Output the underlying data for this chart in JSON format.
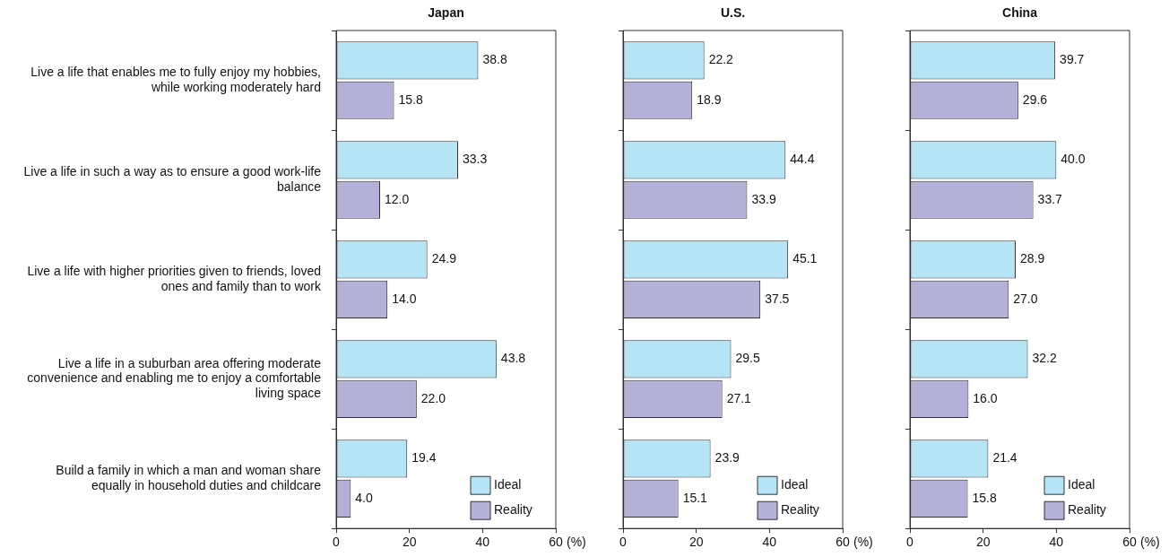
{
  "chart_data": [
    {
      "type": "bar",
      "orientation": "horizontal",
      "title": "Japan",
      "xlabel": "(%)",
      "categories": [
        "Live a life that enables me to fully enjoy my hobbies, while working moderately hard",
        "Live a life in such a way as to ensure a good work-life balance",
        "Live a life with higher priorities given to friends, loved ones and family than to work",
        "Live a life in a suburban area offering moderate convenience and enabling me to enjoy a comfortable living space",
        "Build a family in which a man and woman share equally in household duties and childcare"
      ],
      "series": [
        {
          "name": "Ideal",
          "color": "#b6e4f7",
          "values": [
            38.8,
            33.3,
            24.9,
            43.8,
            19.4
          ],
          "value_labels": [
            "38.8",
            "33.3",
            "24.9",
            "43.8",
            "19.4"
          ]
        },
        {
          "name": "Reality",
          "color": "#b4b1d9",
          "values": [
            15.8,
            12.0,
            14.0,
            22.0,
            4.0
          ],
          "value_labels": [
            "15.8",
            "12.0",
            "14.0",
            "22.0",
            "4.0"
          ]
        }
      ],
      "xlim": [
        0,
        60
      ],
      "xticks": [
        0,
        20,
        40,
        60
      ],
      "legend": "bottom right"
    },
    {
      "type": "bar",
      "orientation": "horizontal",
      "title": "U.S.",
      "xlabel": "(%)",
      "categories": [
        null,
        null,
        null,
        null,
        null
      ],
      "series": [
        {
          "name": "Ideal",
          "color": "#b6e4f7",
          "values": [
            22.2,
            44.4,
            45.1,
            29.5,
            23.9
          ],
          "value_labels": [
            "22.2",
            "44.4",
            "45.1",
            "29.5",
            "23.9"
          ]
        },
        {
          "name": "Reality",
          "color": "#b4b1d9",
          "values": [
            18.9,
            33.9,
            37.5,
            27.1,
            15.1
          ],
          "value_labels": [
            "18.9",
            "33.9",
            "37.5",
            "27.1",
            "15.1"
          ]
        }
      ],
      "xlim": [
        0,
        60
      ],
      "xticks": [
        0,
        20,
        40,
        60
      ],
      "legend": "bottom right",
      "tick_labels": "x"
    },
    {
      "type": "bar",
      "orientation": "horizontal",
      "title": "China",
      "xlabel": "(%)",
      "categories": [
        null,
        null,
        null,
        null,
        null
      ],
      "series": [
        {
          "name": "Ideal",
          "color": "#b6e4f7",
          "values": [
            39.7,
            40.0,
            28.9,
            32.2,
            21.4
          ],
          "value_labels": [
            "39.7",
            "40.0",
            "28.9",
            "32.2",
            "21.4"
          ]
        },
        {
          "name": "Reality",
          "color": "#b4b1d9",
          "values": [
            29.6,
            33.7,
            27.0,
            16.0,
            15.8
          ],
          "value_labels": [
            "29.6",
            "33.7",
            "27.0",
            "16.0",
            "15.8"
          ]
        }
      ],
      "xlim": [
        0,
        60
      ],
      "xticks": [
        0,
        20,
        40,
        60
      ],
      "legend": "bottom right",
      "tick_labels": "x"
    }
  ]
}
